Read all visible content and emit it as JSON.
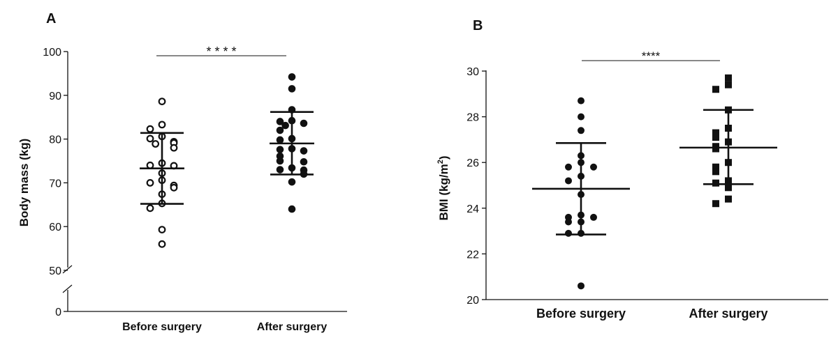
{
  "chart_data": [
    {
      "panel": "A",
      "type": "scatter",
      "title": "",
      "ylabel": "Body mass (kg)",
      "xlabel": "",
      "categories": [
        "Before surgery",
        "After surgery"
      ],
      "y_ticks": [
        "0",
        "50",
        "60",
        "70",
        "80",
        "90",
        "100"
      ],
      "ylim": [
        50,
        100
      ],
      "axis_break": true,
      "significance": "* * * *",
      "marker_styles": [
        "open-circle",
        "filled-circle"
      ],
      "series": [
        {
          "values": [
            88.6,
            83.3,
            82.3,
            80.6,
            80.1,
            79.4,
            79.1,
            78.9,
            78.0,
            74.5,
            74.0,
            73.9,
            72.2,
            70.6,
            70.0,
            69.4,
            68.9,
            67.4,
            65.3,
            64.2,
            59.3,
            56.0
          ],
          "mean": 73.3,
          "sd_upper": 81.4,
          "sd_lower": 65.2
        },
        {
          "values": [
            94.2,
            91.5,
            86.7,
            84.2,
            84.0,
            83.6,
            83.1,
            82.0,
            80.1,
            79.8,
            77.8,
            77.6,
            77.3,
            76.1,
            75.0,
            74.8,
            73.4,
            73.0,
            72.9,
            72.0,
            70.2,
            64.0
          ],
          "mean": 79.0,
          "sd_upper": 86.2,
          "sd_lower": 71.9
        }
      ]
    },
    {
      "panel": "B",
      "type": "scatter",
      "title": "",
      "ylabel_main": "BMI (kg/m",
      "ylabel_sup": "2",
      "ylabel_close": ")",
      "xlabel": "",
      "categories": [
        "Before surgery",
        "After surgery"
      ],
      "y_ticks": [
        "20",
        "22",
        "24",
        "26",
        "28",
        "30"
      ],
      "ylim": [
        20,
        30
      ],
      "significance": "****",
      "marker_styles": [
        "filled-circle",
        "filled-square"
      ],
      "series": [
        {
          "values": [
            28.7,
            28.0,
            27.4,
            26.3,
            26.0,
            25.8,
            25.8,
            25.4,
            25.2,
            24.6,
            23.7,
            23.6,
            23.6,
            23.4,
            23.4,
            22.9,
            22.9,
            20.6
          ],
          "mean": 24.85,
          "sd_upper": 26.85,
          "sd_lower": 22.85
        },
        {
          "values": [
            29.7,
            29.4,
            29.2,
            28.3,
            27.5,
            27.3,
            27.1,
            26.9,
            26.7,
            26.6,
            26.0,
            25.8,
            25.6,
            25.2,
            25.1,
            24.9,
            24.4,
            24.2
          ],
          "mean": 26.65,
          "sd_upper": 28.3,
          "sd_lower": 25.05
        }
      ]
    }
  ],
  "panels": {
    "a_letter": "A",
    "b_letter": "B"
  }
}
